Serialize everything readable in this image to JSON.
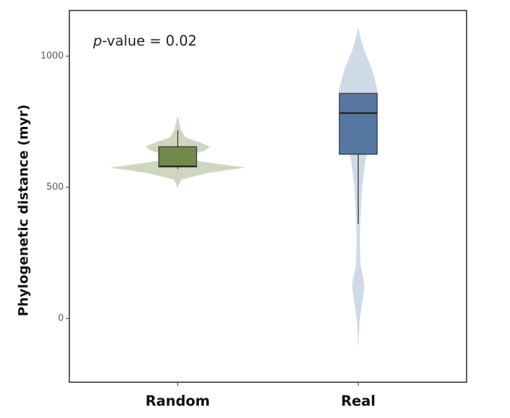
{
  "chart_data": {
    "type": "violin-box",
    "y_label": "Phylogenetic distance (myr)",
    "annotation": {
      "italic": "p",
      "text": "-value = 0.02"
    },
    "categories": [
      "Random",
      "Real"
    ],
    "ylim": [
      -243,
      1174
    ],
    "yticks": [
      0,
      500,
      1000
    ],
    "series": [
      {
        "name": "Random",
        "color": "#6f8a4a",
        "violin_color": "#c5cfb6",
        "box": {
          "whisker_low": 570,
          "q1": 578,
          "median": 580,
          "q3": 655,
          "whisker_high": 717
        },
        "violin": {
          "y": [
            500,
            530,
            555,
            575,
            590,
            605,
            620,
            640,
            655,
            670,
            690,
            720,
            750,
            770
          ],
          "density": [
            0,
            0.05,
            0.4,
            0.88,
            0.5,
            0.15,
            0.12,
            0.35,
            0.42,
            0.3,
            0.1,
            0.04,
            0.02,
            0
          ]
        }
      },
      {
        "name": "Real",
        "color": "#5576a0",
        "violin_color": "#c6d3e1",
        "box": {
          "whisker_low": 361,
          "q1": 626,
          "median": 783,
          "q3": 858,
          "whisker_high": 858
        },
        "violin": {
          "y": [
            -110,
            -50,
            0,
            60,
            120,
            150,
            200,
            300,
            400,
            500,
            600,
            700,
            800,
            870,
            950,
            1020,
            1070,
            1110
          ],
          "density": [
            0,
            0.01,
            0.02,
            0.05,
            0.08,
            0.07,
            0.03,
            0.02,
            0.03,
            0.05,
            0.09,
            0.17,
            0.23,
            0.25,
            0.18,
            0.08,
            0.03,
            0
          ]
        }
      }
    ]
  }
}
